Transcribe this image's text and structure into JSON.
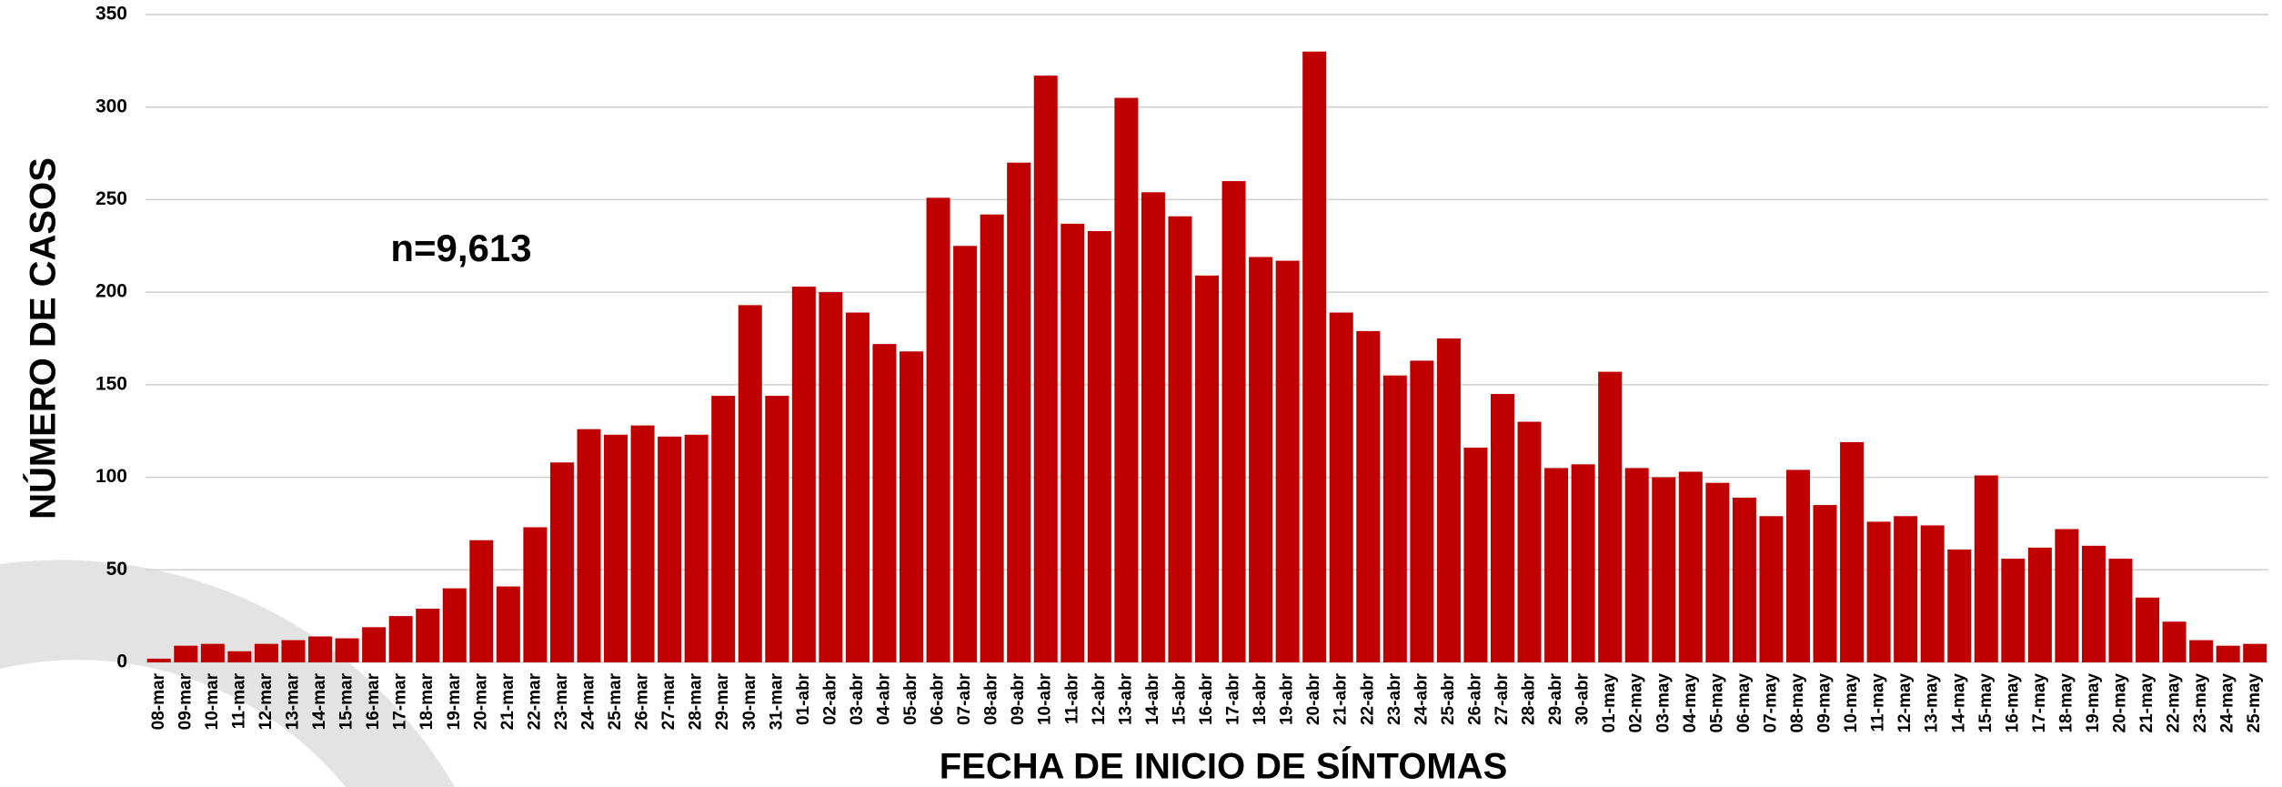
{
  "chart_data": {
    "type": "bar",
    "ylabel": "NÚMERO DE CASOS",
    "xlabel": "FECHA DE INICIO DE SÍNTOMAS",
    "annotation": "n=9,613",
    "color": "#c00000",
    "grid": true,
    "ylim": [
      0,
      350
    ],
    "yticks": [
      0,
      50,
      100,
      150,
      200,
      250,
      300,
      350
    ],
    "categories": [
      "08-mar",
      "09-mar",
      "10-mar",
      "11-mar",
      "12-mar",
      "13-mar",
      "14-mar",
      "15-mar",
      "16-mar",
      "17-mar",
      "18-mar",
      "19-mar",
      "20-mar",
      "21-mar",
      "22-mar",
      "23-mar",
      "24-mar",
      "25-mar",
      "26-mar",
      "27-mar",
      "28-mar",
      "29-mar",
      "30-mar",
      "31-mar",
      "01-abr",
      "02-abr",
      "03-abr",
      "04-abr",
      "05-abr",
      "06-abr",
      "07-abr",
      "08-abr",
      "09-abr",
      "10-abr",
      "11-abr",
      "12-abr",
      "13-abr",
      "14-abr",
      "15-abr",
      "16-abr",
      "17-abr",
      "18-abr",
      "19-abr",
      "20-abr",
      "21-abr",
      "22-abr",
      "23-abr",
      "24-abr",
      "25-abr",
      "26-abr",
      "27-abr",
      "28-abr",
      "29-abr",
      "30-abr",
      "01-may",
      "02-may",
      "03-may",
      "04-may",
      "05-may",
      "06-may",
      "07-may",
      "08-may",
      "09-may",
      "10-may",
      "11-may",
      "12-may",
      "13-may",
      "14-may",
      "15-may",
      "16-may",
      "17-may",
      "18-may",
      "19-may",
      "20-may",
      "21-may",
      "22-may",
      "23-may",
      "24-may",
      "25-may"
    ],
    "values": [
      2,
      9,
      10,
      6,
      10,
      12,
      14,
      13,
      19,
      25,
      29,
      40,
      66,
      41,
      73,
      108,
      126,
      123,
      128,
      122,
      123,
      144,
      193,
      144,
      203,
      200,
      189,
      172,
      168,
      251,
      225,
      242,
      270,
      317,
      237,
      233,
      305,
      254,
      241,
      209,
      260,
      219,
      217,
      330,
      189,
      179,
      155,
      163,
      175,
      116,
      145,
      130,
      105,
      107,
      157,
      105,
      100,
      103,
      97,
      89,
      79,
      104,
      85,
      119,
      76,
      79,
      74,
      61,
      101,
      56,
      62,
      72,
      63,
      56,
      35,
      22,
      12,
      9,
      10
    ]
  }
}
